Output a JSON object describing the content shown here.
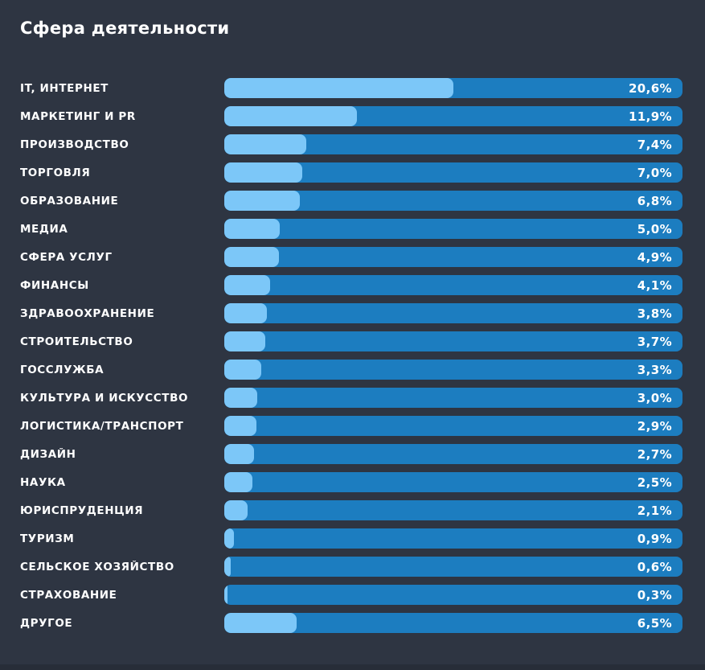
{
  "title": "Сфера деятельности",
  "colors": {
    "background": "#2e3542",
    "bar_track": "#1c7dc0",
    "bar_fill": "#7cc7f8",
    "text": "#ffffff",
    "footer_strip": "#272d38"
  },
  "chart_data": {
    "type": "bar",
    "orientation": "horizontal",
    "title": "Сфера деятельности",
    "categories": [
      "IT, ИНТЕРНЕТ",
      "МАРКЕТИНГ И PR",
      "ПРОИЗВОДСТВО",
      "ТОРГОВЛЯ",
      "ОБРАЗОВАНИЕ",
      "МЕДИА",
      "СФЕРА УСЛУГ",
      "ФИНАНСЫ",
      "ЗДРАВООХРАНЕНИЕ",
      "СТРОИТЕЛЬСТВО",
      "ГОССЛУЖБА",
      "КУЛЬТУРА И ИСКУССТВО",
      "ЛОГИСТИКА/ТРАНСПОРТ",
      "ДИЗАЙН",
      "НАУКА",
      "ЮРИСПРУДЕНЦИЯ",
      "ТУРИЗМ",
      "СЕЛЬСКОЕ ХОЗЯЙСТВО",
      "СТРАХОВАНИЕ",
      "ДРУГОЕ"
    ],
    "values": [
      20.6,
      11.9,
      7.4,
      7.0,
      6.8,
      5.0,
      4.9,
      4.1,
      3.8,
      3.7,
      3.3,
      3.0,
      2.9,
      2.7,
      2.5,
      2.1,
      0.9,
      0.6,
      0.3,
      6.5
    ],
    "value_labels": [
      "20,6%",
      "11,9%",
      "7,4%",
      "7,0%",
      "6,8%",
      "5,0%",
      "4,9%",
      "4,1%",
      "3,8%",
      "3,7%",
      "3,3%",
      "3,0%",
      "2,9%",
      "2,7%",
      "2,5%",
      "2,1%",
      "0,9%",
      "0,6%",
      "0,3%",
      "6,5%"
    ],
    "xlabel": "",
    "ylabel": "",
    "xlim": [
      0,
      41.2
    ],
    "scale_max": 41.2,
    "grid": false,
    "legend": false,
    "value_label_position": "inside-right",
    "unit": "%"
  }
}
